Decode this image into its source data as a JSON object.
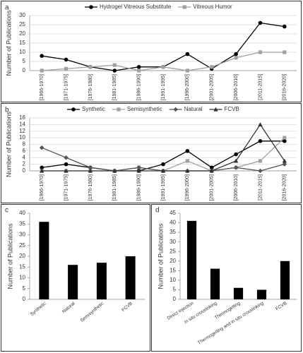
{
  "chart_data": [
    {
      "type": "line",
      "panel_label": "a",
      "y_label": "Number of Publications",
      "categories": [
        "[1966-1970]",
        "[1971-1975]",
        "[1976-1980]",
        "[1981-1985]",
        "[1986-1990]",
        "[1991-1995]",
        "[1996-2000]",
        "[2001-2005]",
        "[2006-2010]",
        "[2011-2015]",
        "[2016-2020]"
      ],
      "series": [
        {
          "name": "Hydrogel Vitreous Substitute",
          "color": "#000000",
          "marker": "circle",
          "values": [
            8,
            6,
            2,
            0,
            2,
            2,
            9,
            1,
            9,
            26,
            24
          ]
        },
        {
          "name": "Vitreous Humor",
          "color": "#a0a0a0",
          "marker": "square",
          "values": [
            0,
            1,
            2,
            3,
            0,
            2,
            0,
            2,
            7,
            10,
            10
          ]
        }
      ],
      "ylim": [
        0,
        30
      ],
      "yticks": [
        0,
        5,
        10,
        15,
        20,
        25,
        30
      ],
      "grid": true,
      "legend": "top"
    },
    {
      "type": "line",
      "panel_label": "b",
      "y_label": "Number of Publications",
      "categories": [
        "[1966-1970]",
        "[1971-1975]",
        "[1976-1980]",
        "[1981-1985]",
        "[1986-1990]",
        "[1991-1995]",
        "[1996-2000]",
        "[2001-2005]",
        "[2006-2010]",
        "[2011-2015]",
        "[2016-2020]"
      ],
      "series": [
        {
          "name": "Synthetic",
          "color": "#000000",
          "marker": "circle",
          "values": [
            1,
            2,
            1,
            0,
            0,
            2,
            6,
            1,
            5,
            9,
            9
          ]
        },
        {
          "name": "Semisynthetic",
          "color": "#a0a0a0",
          "marker": "square",
          "values": [
            0,
            0,
            0,
            0,
            1,
            0,
            3,
            0,
            1,
            3,
            10
          ]
        },
        {
          "name": "Natural",
          "color": "#555555",
          "marker": "diamond",
          "values": [
            7,
            4,
            1,
            0,
            1,
            0,
            0,
            0,
            1,
            0,
            2
          ]
        },
        {
          "name": "FCVB",
          "color": "#333333",
          "marker": "triangle",
          "values": [
            0,
            0,
            0,
            0,
            0,
            0,
            0,
            0,
            3,
            14,
            3
          ]
        }
      ],
      "ylim": [
        0,
        16
      ],
      "yticks": [
        0,
        2,
        4,
        6,
        8,
        10,
        12,
        14,
        16
      ],
      "grid": true,
      "legend": "top"
    },
    {
      "type": "bar",
      "panel_label": "c",
      "y_label": "Number of Publications",
      "categories": [
        "Synthetic",
        "Natural",
        "Semisynthetic",
        "FCVB"
      ],
      "values": [
        36,
        16,
        17,
        20
      ],
      "color": "#000000",
      "ylim": [
        0,
        40
      ],
      "yticks": [
        0,
        5,
        10,
        15,
        20,
        25,
        30,
        35,
        40
      ],
      "grid": false
    },
    {
      "type": "bar",
      "panel_label": "d",
      "y_label": "Number of Publications",
      "categories": [
        "Direct injection",
        "In situ crosslinking",
        "Thermogelling",
        "Thermogelling and in situ crosslinking",
        "FCVB"
      ],
      "values": [
        41,
        16,
        6,
        5,
        20
      ],
      "color": "#000000",
      "ylim": [
        0,
        45
      ],
      "yticks": [
        0,
        5,
        10,
        15,
        20,
        25,
        30,
        35,
        40,
        45
      ],
      "grid": false
    }
  ]
}
